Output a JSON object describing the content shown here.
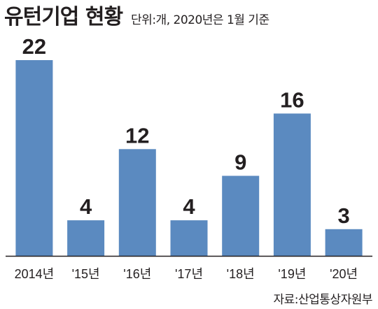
{
  "chart_data": {
    "type": "bar",
    "title": "유턴기업 현황",
    "subtitle": "단위:개, 2020년은 1월 기준",
    "xlabel": "",
    "ylabel": "",
    "categories": [
      "2014년",
      "'15년",
      "'16년",
      "'17년",
      "'18년",
      "'19년",
      "'20년"
    ],
    "values": [
      22,
      4,
      12,
      4,
      9,
      16,
      3
    ],
    "ylim": [
      0,
      24
    ],
    "grid": false,
    "legend": "none",
    "bar_color": "#5b8ac0",
    "baseline_color": "#231f20"
  },
  "source": "자료:산업통상자원부"
}
